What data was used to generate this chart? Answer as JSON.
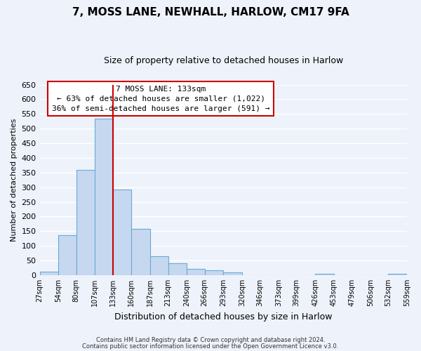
{
  "title": "7, MOSS LANE, NEWHALL, HARLOW, CM17 9FA",
  "subtitle": "Size of property relative to detached houses in Harlow",
  "xlabel": "Distribution of detached houses by size in Harlow",
  "ylabel": "Number of detached properties",
  "bar_color": "#c5d8f0",
  "bar_edge_color": "#6aaad4",
  "bg_color": "#eef2fb",
  "grid_color": "#ffffff",
  "annotation_box_color": "#cc0000",
  "vline_color": "#cc0000",
  "vline_x": 133,
  "annotation_line1": "7 MOSS LANE: 133sqm",
  "annotation_line2": "← 63% of detached houses are smaller (1,022)",
  "annotation_line3": "36% of semi-detached houses are larger (591) →",
  "bin_edges": [
    27,
    54,
    80,
    107,
    133,
    160,
    187,
    213,
    240,
    266,
    293,
    320,
    346,
    373,
    399,
    426,
    453,
    479,
    506,
    532,
    559
  ],
  "bin_heights": [
    11,
    136,
    358,
    535,
    291,
    157,
    65,
    41,
    22,
    16,
    10,
    0,
    0,
    0,
    0,
    5,
    0,
    0,
    0,
    5
  ],
  "ylim": [
    0,
    650
  ],
  "yticks": [
    0,
    50,
    100,
    150,
    200,
    250,
    300,
    350,
    400,
    450,
    500,
    550,
    600,
    650
  ],
  "footer_line1": "Contains HM Land Registry data © Crown copyright and database right 2024.",
  "footer_line2": "Contains public sector information licensed under the Open Government Licence v3.0."
}
